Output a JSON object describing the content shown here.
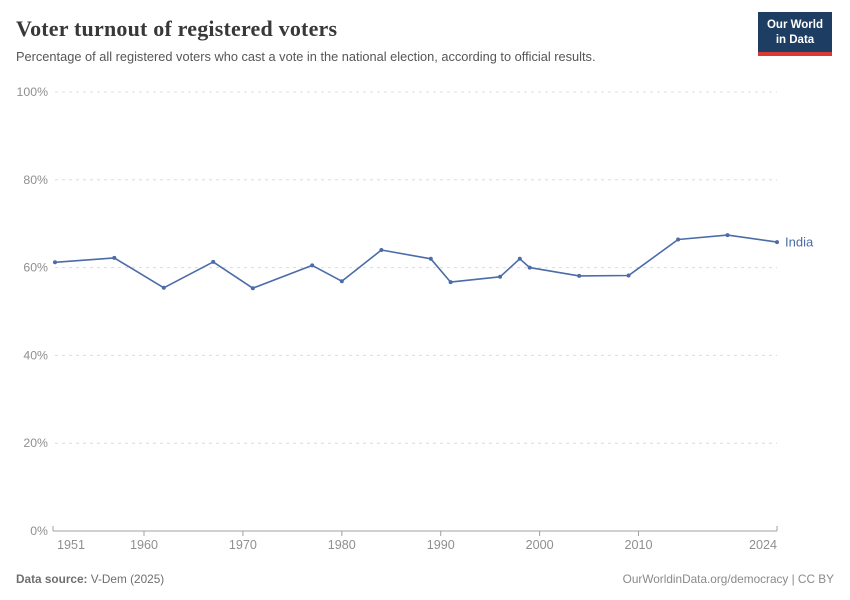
{
  "header": {
    "title": "Voter turnout of registered voters",
    "subtitle": "Percentage of all registered voters who cast a vote in the national election, according to official results."
  },
  "logo": {
    "line1": "Our World",
    "line2": "in Data",
    "bg_color": "#1d3d63",
    "bar_color": "#d93a34",
    "text_color": "#ffffff"
  },
  "footer": {
    "source_label": "Data source:",
    "source_value": "V-Dem (2025)",
    "credit": "OurWorldinData.org/democracy | CC BY"
  },
  "colors": {
    "series_blue": "#4c6ba9",
    "grid": "#dcdcdc",
    "axis": "#a0a0a0",
    "tick_text": "#8f8f8f"
  },
  "chart_data": {
    "type": "line",
    "title": "Voter turnout of registered voters",
    "xlabel": "",
    "ylabel": "",
    "grid": "horizontal-dashed",
    "legend_position": "end-of-line",
    "x": {
      "min": 1951,
      "max": 2024,
      "ticks": [
        1951,
        1960,
        1970,
        1980,
        1990,
        2000,
        2010,
        2024
      ]
    },
    "y": {
      "min": 0,
      "max": 100,
      "ticks": [
        0,
        20,
        40,
        60,
        80,
        100
      ],
      "tick_suffix": "%"
    },
    "series": [
      {
        "name": "India",
        "color": "#4c6ba9",
        "points": [
          {
            "year": 1951,
            "value": 61.2
          },
          {
            "year": 1957,
            "value": 62.2
          },
          {
            "year": 1962,
            "value": 55.4
          },
          {
            "year": 1967,
            "value": 61.3
          },
          {
            "year": 1971,
            "value": 55.3
          },
          {
            "year": 1977,
            "value": 60.5
          },
          {
            "year": 1980,
            "value": 56.9
          },
          {
            "year": 1984,
            "value": 64.0
          },
          {
            "year": 1989,
            "value": 62.0
          },
          {
            "year": 1991,
            "value": 56.7
          },
          {
            "year": 1996,
            "value": 57.9
          },
          {
            "year": 1998,
            "value": 62.0
          },
          {
            "year": 1999,
            "value": 60.0
          },
          {
            "year": 2004,
            "value": 58.1
          },
          {
            "year": 2009,
            "value": 58.2
          },
          {
            "year": 2014,
            "value": 66.4
          },
          {
            "year": 2019,
            "value": 67.4
          },
          {
            "year": 2024,
            "value": 65.8
          }
        ]
      }
    ]
  }
}
